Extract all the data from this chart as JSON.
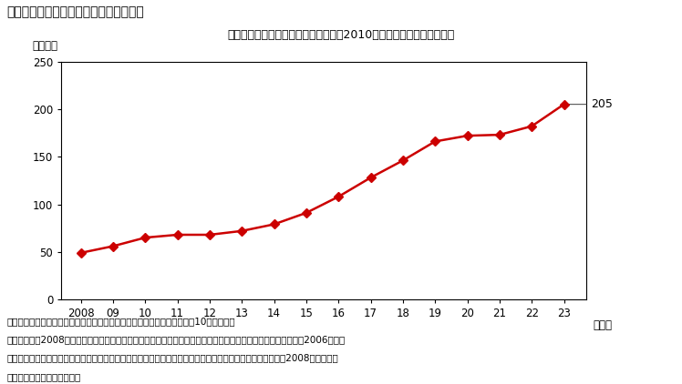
{
  "title_main": "第２－３－１図　外国人労働者数の推移",
  "title_sub": "外国人労働者数は増加傾向で推移し、2010年代半ば以降の伸びが顕著",
  "ylabel": "（万人）",
  "xlabel_suffix": "（年）",
  "years": [
    2008,
    2009,
    2010,
    2011,
    2012,
    2013,
    2014,
    2015,
    2016,
    2017,
    2018,
    2019,
    2020,
    2021,
    2022,
    2023
  ],
  "values": [
    49,
    56,
    65,
    68,
    68,
    72,
    79,
    91,
    108,
    128,
    146,
    166,
    172,
    173,
    182,
    205
  ],
  "xtick_labels": [
    "2008",
    "09",
    "10",
    "11",
    "12",
    "13",
    "14",
    "15",
    "16",
    "17",
    "18",
    "19",
    "20",
    "21",
    "22",
    "23"
  ],
  "ylim": [
    0,
    250
  ],
  "yticks": [
    0,
    50,
    100,
    150,
    200,
    250
  ],
  "line_color": "#CC0000",
  "marker_color": "#CC0000",
  "last_value_label": "205",
  "note_line1": "（備考）１．厚生労働省「外国人雇用状況の届出状況」により作成。各年10月末時点。",
  "note_line2": "　　　　２．2008年以降、全ての事業者に外国人労働者の雇入れ又は離職の際の届出を義務付けている。なお、2006年まで",
  "note_line3": "　　　　　　「外国人雇用状況報告」が実施されていたが、一部の事業所を対象とした任意調査であるため、2008年以降とは",
  "note_line4": "　　　　　　比較できない。",
  "bg_color": "#ffffff",
  "font_size_main_title": 10,
  "font_size_sub_title": 9,
  "font_size_axis": 8.5,
  "font_size_note": 7.5
}
